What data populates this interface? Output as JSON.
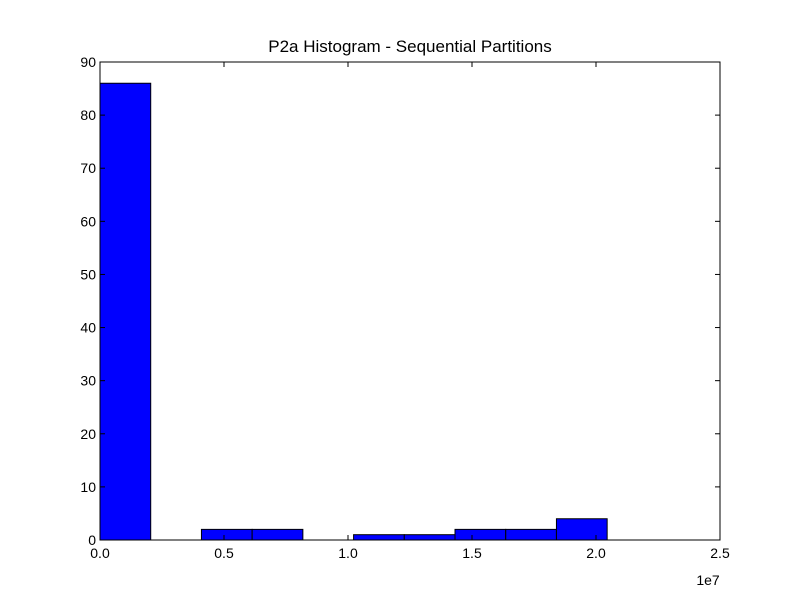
{
  "chart_data": {
    "type": "bar",
    "title": "P2a Histogram - Sequential Partitions",
    "xlabel": "",
    "ylabel": "",
    "x_offset_label": "1e7",
    "xlim": [
      0.0,
      2.5
    ],
    "ylim": [
      0,
      90
    ],
    "x_ticks": [
      "0.0",
      "0.5",
      "1.0",
      "1.5",
      "2.0",
      "2.5"
    ],
    "y_ticks": [
      "0",
      "10",
      "20",
      "30",
      "40",
      "50",
      "60",
      "70",
      "80",
      "90"
    ],
    "bin_edges": [
      0.0,
      0.2045,
      0.409,
      0.6135,
      0.818,
      1.0225,
      1.227,
      1.4315,
      1.636,
      1.8405,
      2.045
    ],
    "values": [
      86,
      0,
      2,
      2,
      0,
      1,
      1,
      2,
      2,
      4
    ],
    "bar_color": "#0000ff",
    "grid": false,
    "legend": "none"
  }
}
